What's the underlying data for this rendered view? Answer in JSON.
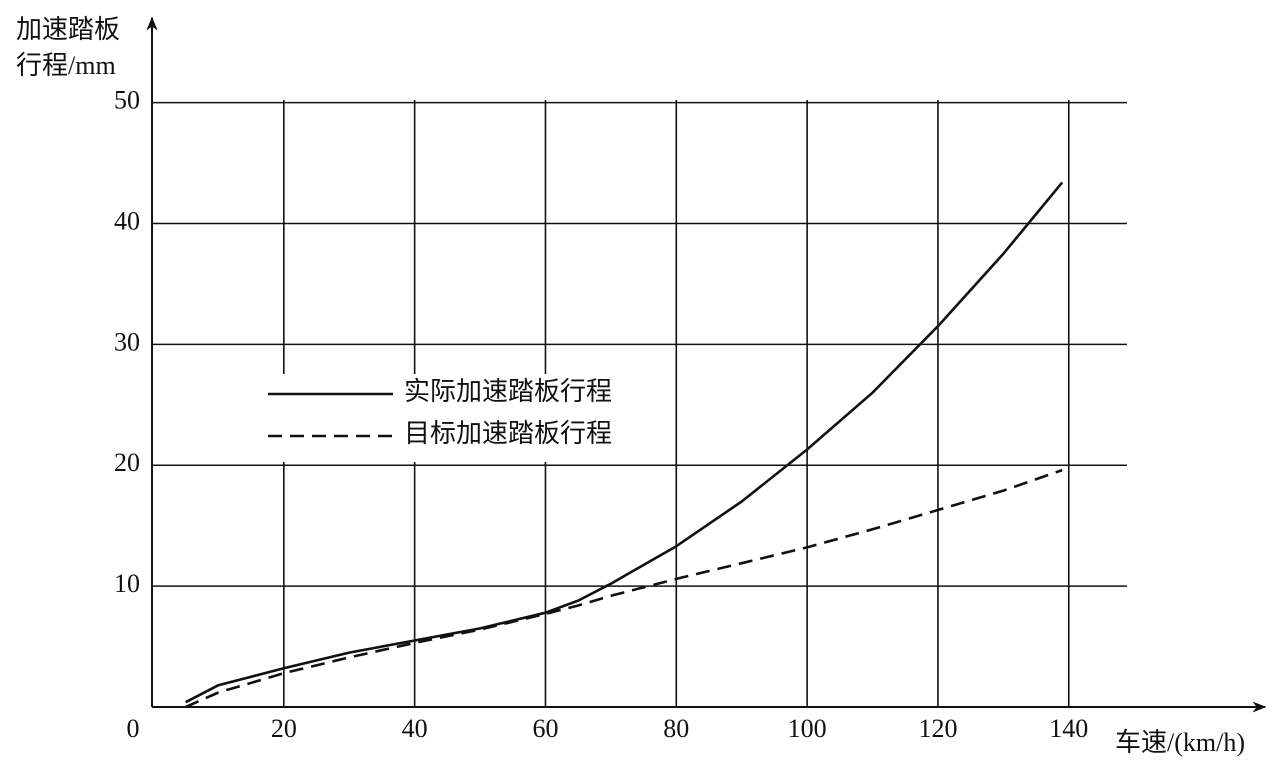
{
  "chart_data": {
    "type": "line",
    "y_label": [
      "加速踏板",
      "行程/mm"
    ],
    "x_label": "车速/(km/h)",
    "x": [
      5,
      10,
      20,
      30,
      40,
      50,
      60,
      65,
      70,
      80,
      90,
      100,
      110,
      120,
      130,
      139
    ],
    "series": [
      {
        "name": "实际加速踏板行程",
        "color": "#111111",
        "dash": false,
        "values": [
          0.4,
          1.8,
          3.2,
          4.5,
          5.5,
          6.5,
          7.8,
          8.8,
          10.2,
          13.3,
          17,
          21.3,
          26,
          31.5,
          37.5,
          43.4
        ]
      },
      {
        "name": "目标加速踏板行程",
        "color": "#111111",
        "dash": true,
        "values": [
          0,
          1.2,
          2.8,
          4.1,
          5.3,
          6.4,
          7.7,
          8.4,
          9.2,
          10.6,
          11.9,
          13.2,
          14.7,
          16.3,
          17.9,
          19.6
        ]
      }
    ],
    "xlim": [
      0,
      170
    ],
    "ylim": [
      0,
      57
    ],
    "xticks": [
      0,
      20,
      40,
      60,
      80,
      100,
      120,
      140
    ],
    "yticks": [
      10,
      20,
      30,
      40,
      50
    ],
    "grid": true
  }
}
